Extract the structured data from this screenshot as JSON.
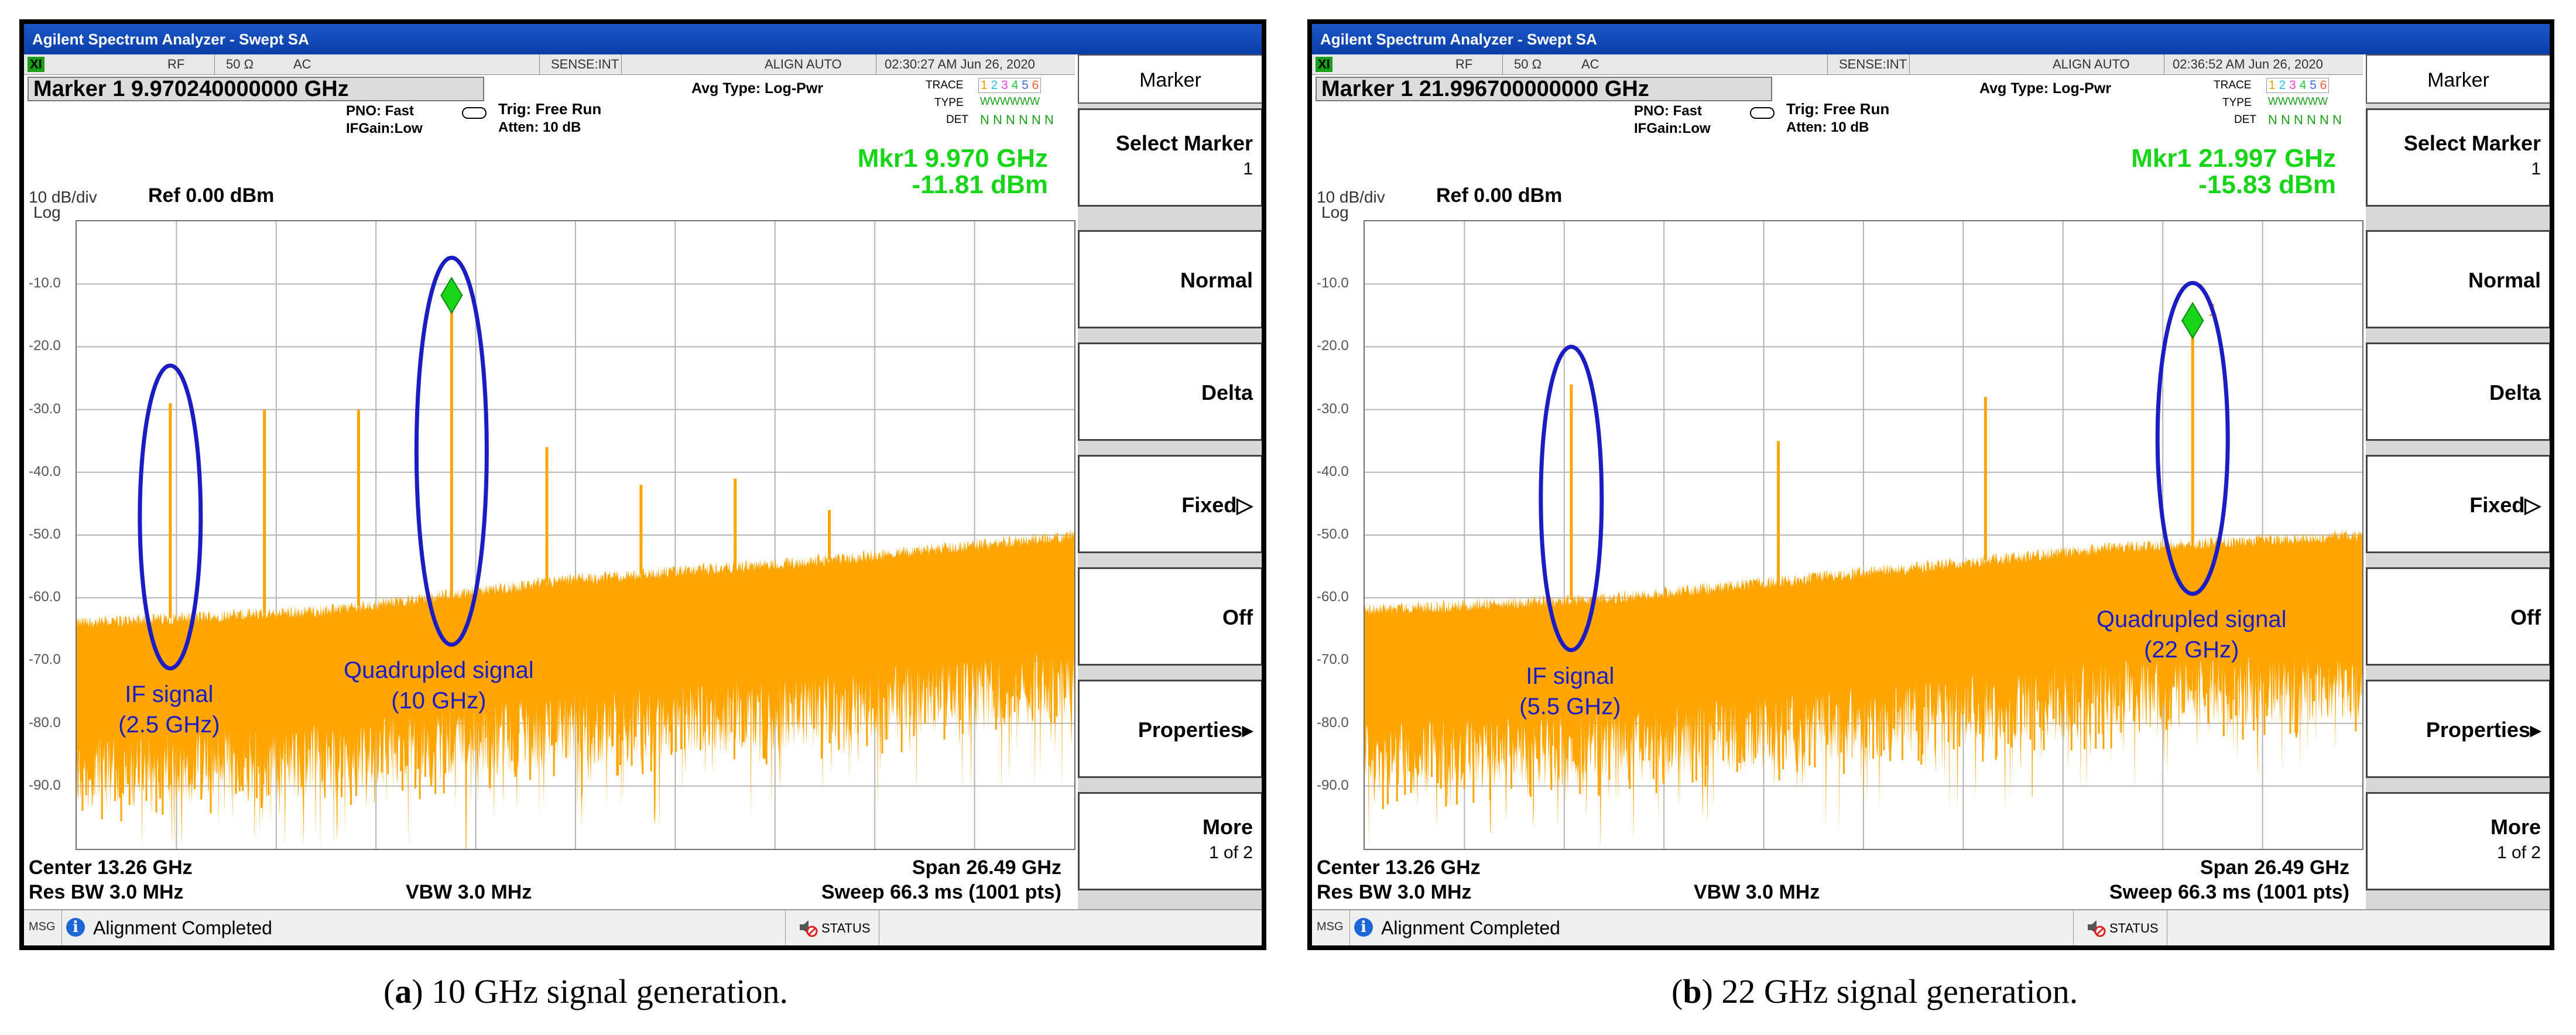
{
  "panels": [
    {
      "title": "Agilent Spectrum Analyzer - Swept SA",
      "status": {
        "xi": "XI",
        "rf": "RF",
        "ohm": "50 Ω",
        "ac": "AC",
        "sense": "SENSE:INT",
        "align": "ALIGN AUTO",
        "datetime": "02:30:27 AM Jun 26, 2020"
      },
      "marker_line": "Marker 1 9.970240000000 GHz",
      "pno": "PNO: Fast",
      "ifgain": "IFGain:Low",
      "trig": "Trig: Free Run",
      "atten": "Atten: 10 dB",
      "avg_type": "Avg Type: Log-Pwr",
      "trace_labels": {
        "trace": "TRACE",
        "type": "TYPE",
        "det": "DET",
        "trace_digits": "1 2 3 4 5 6",
        "type_vals": "WWWWWW",
        "det_vals": "N N N N N N"
      },
      "mkr_freq": "Mkr1 9.970 GHz",
      "mkr_amp": "-11.81 dBm",
      "scale": "10 dB/div",
      "log": "Log",
      "ref": "Ref 0.00 dBm",
      "y_ticks": [
        "-10.0",
        "-20.0",
        "-30.0",
        "-40.0",
        "-50.0",
        "-60.0",
        "-70.0",
        "-80.0",
        "-90.0"
      ],
      "center": "Center 13.26 GHz",
      "resbw": "Res BW 3.0 MHz",
      "vbw": "VBW 3.0 MHz",
      "span": "Span 26.49 GHz",
      "sweep": "Sweep  66.3 ms (1001 pts)",
      "msg": "MSG",
      "msg_text": "Alignment Completed",
      "status_text": "STATUS",
      "softkeys": {
        "title": "Marker",
        "items": [
          {
            "label": "Select Marker",
            "sub": "1"
          },
          {
            "label": "Normal",
            "sub": ""
          },
          {
            "label": "Delta",
            "sub": ""
          },
          {
            "label": "Fixed▷",
            "sub": ""
          },
          {
            "label": "Off",
            "sub": ""
          },
          {
            "label": "Properties▸",
            "sub": ""
          },
          {
            "label": "More",
            "sub": "1 of 2"
          }
        ]
      },
      "annotations": [
        {
          "line1": "IF signal",
          "line2": "(2.5 GHz)"
        },
        {
          "line1": "Quadrupled signal",
          "line2": "(10 GHz)"
        }
      ],
      "marker_num": "",
      "caption_letter": "a",
      "caption_text": " 10 GHz signal generation.",
      "colors": {
        "trace": "#ffa500",
        "marker": "#17d517",
        "annotation": "#1c1cc4"
      },
      "chart_data": {
        "type": "line",
        "x_unit": "GHz",
        "y_unit": "dBm",
        "xlim": [
          0.015,
          26.505
        ],
        "ylim": [
          -100,
          0
        ],
        "noise_floor": [
          [
            0.015,
            -64
          ],
          [
            6.6,
            -62
          ],
          [
            13.26,
            -57
          ],
          [
            19.9,
            -54
          ],
          [
            26.505,
            -50
          ]
        ],
        "spurs": [
          {
            "x": 2.5,
            "y": -29
          },
          {
            "x": 5.0,
            "y": -30
          },
          {
            "x": 7.5,
            "y": -30
          },
          {
            "x": 9.97,
            "y": -11.81
          },
          {
            "x": 12.5,
            "y": -36
          },
          {
            "x": 15.0,
            "y": -42
          },
          {
            "x": 17.5,
            "y": -41
          },
          {
            "x": 20.0,
            "y": -46
          }
        ],
        "marker": {
          "x": 9.97,
          "y": -11.81
        }
      }
    },
    {
      "title": "Agilent Spectrum Analyzer - Swept SA",
      "status": {
        "xi": "XI",
        "rf": "RF",
        "ohm": "50 Ω",
        "ac": "AC",
        "sense": "SENSE:INT",
        "align": "ALIGN AUTO",
        "datetime": "02:36:52 AM Jun 26, 2020"
      },
      "marker_line": "Marker 1 21.996700000000 GHz",
      "pno": "PNO: Fast",
      "ifgain": "IFGain:Low",
      "trig": "Trig: Free Run",
      "atten": "Atten: 10 dB",
      "avg_type": "Avg Type: Log-Pwr",
      "trace_labels": {
        "trace": "TRACE",
        "type": "TYPE",
        "det": "DET",
        "trace_digits": "1 2 3 4 5 6",
        "type_vals": "WWWWWW",
        "det_vals": "N N N N N N"
      },
      "mkr_freq": "Mkr1 21.997 GHz",
      "mkr_amp": "-15.83 dBm",
      "scale": "10 dB/div",
      "log": "Log",
      "ref": "Ref 0.00 dBm",
      "y_ticks": [
        "-10.0",
        "-20.0",
        "-30.0",
        "-40.0",
        "-50.0",
        "-60.0",
        "-70.0",
        "-80.0",
        "-90.0"
      ],
      "center": "Center 13.26 GHz",
      "resbw": "Res BW 3.0 MHz",
      "vbw": "VBW 3.0 MHz",
      "span": "Span 26.49 GHz",
      "sweep": "Sweep  66.3 ms (1001 pts)",
      "msg": "MSG",
      "msg_text": "Alignment Completed",
      "status_text": "STATUS",
      "softkeys": {
        "title": "Marker",
        "items": [
          {
            "label": "Select Marker",
            "sub": "1"
          },
          {
            "label": "Normal",
            "sub": ""
          },
          {
            "label": "Delta",
            "sub": ""
          },
          {
            "label": "Fixed▷",
            "sub": ""
          },
          {
            "label": "Off",
            "sub": ""
          },
          {
            "label": "Properties▸",
            "sub": ""
          },
          {
            "label": "More",
            "sub": "1 of 2"
          }
        ]
      },
      "annotations": [
        {
          "line1": "IF signal",
          "line2": "(5.5 GHz)"
        },
        {
          "line1": "Quadrupled signal",
          "line2": "(22 GHz)"
        }
      ],
      "marker_num": "1",
      "caption_letter": "b",
      "caption_text": " 22 GHz signal generation.",
      "colors": {
        "trace": "#ffa500",
        "marker": "#17d517",
        "annotation": "#1c1cc4"
      },
      "chart_data": {
        "type": "line",
        "x_unit": "GHz",
        "y_unit": "dBm",
        "xlim": [
          0.015,
          26.505
        ],
        "ylim": [
          -100,
          0
        ],
        "noise_floor": [
          [
            0.015,
            -62
          ],
          [
            6.6,
            -60
          ],
          [
            13.26,
            -56
          ],
          [
            19.9,
            -52
          ],
          [
            26.505,
            -50
          ]
        ],
        "spurs": [
          {
            "x": 5.5,
            "y": -26
          },
          {
            "x": 11.0,
            "y": -35
          },
          {
            "x": 16.5,
            "y": -28
          },
          {
            "x": 22.0,
            "y": -15.83
          }
        ],
        "marker": {
          "x": 22.0,
          "y": -15.83
        }
      }
    }
  ]
}
